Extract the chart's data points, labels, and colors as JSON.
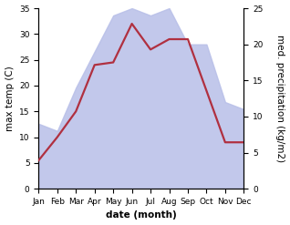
{
  "months": [
    "Jan",
    "Feb",
    "Mar",
    "Apr",
    "May",
    "Jun",
    "Jul",
    "Aug",
    "Sep",
    "Oct",
    "Nov",
    "Dec"
  ],
  "temp": [
    5.5,
    10.0,
    15.0,
    24.0,
    24.5,
    32.0,
    27.0,
    29.0,
    29.0,
    19.0,
    9.0,
    9.0
  ],
  "precip": [
    9.0,
    8.0,
    14.0,
    19.0,
    24.0,
    25.0,
    24.0,
    25.0,
    20.0,
    20.0,
    12.0,
    11.0
  ],
  "temp_color": "#b03040",
  "precip_fill_color": "#b8bfe8",
  "precip_alpha": 0.85,
  "temp_ylim": [
    0,
    35
  ],
  "precip_ylim": [
    0,
    25
  ],
  "temp_yticks": [
    0,
    5,
    10,
    15,
    20,
    25,
    30,
    35
  ],
  "precip_yticks": [
    0,
    5,
    10,
    15,
    20,
    25
  ],
  "xlabel": "date (month)",
  "ylabel_left": "max temp (C)",
  "ylabel_right": "med. precipitation (kg/m2)",
  "axis_fontsize": 7.5,
  "tick_fontsize": 6.5,
  "bg_color": "#ffffff",
  "line_width": 1.6
}
